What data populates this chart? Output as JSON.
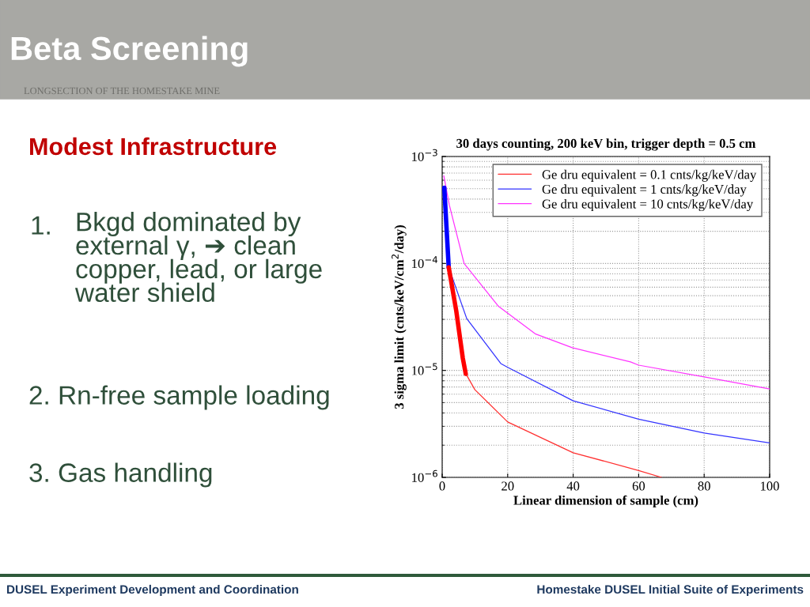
{
  "chart_data": {
    "type": "line",
    "title": "30 days counting, 200 keV bin, trigger depth = 0.5 cm",
    "xlabel": "Linear dimension of sample (cm)",
    "ylabel": "3 sigma limit (cnts/keV/cm$^{2}$/day)",
    "log": "y",
    "xlim": [
      0,
      100
    ],
    "xticks": [
      0,
      20,
      40,
      60,
      80,
      100
    ],
    "ylim": [
      1e-06,
      0.001
    ],
    "yticks": [
      {
        "value": 1e-06,
        "label": "10$^{−6}$"
      },
      {
        "value": 1e-05,
        "label": "10$^{−5}$"
      },
      {
        "value": 0.0001,
        "label": "10$^{−4}$"
      },
      {
        "value": 0.001,
        "label": "10$^{−3}$"
      }
    ],
    "grid": true,
    "legend": "top right",
    "line_style": "solid",
    "marker": "none",
    "series": [
      {
        "name": "Ge dru equivalent = 0.1 cnts/kg/keV/day",
        "color": "#ff3030",
        "x": [
          2,
          4.3,
          6.3,
          7.5,
          10,
          20,
          40,
          60,
          67
        ],
        "values": [
          9.2e-05,
          3.6e-05,
          1.3e-05,
          9e-06,
          6.6e-06,
          3.3e-06,
          1.7e-06,
          1.16e-06,
          1e-06
        ]
      },
      {
        "name": "Ge dru equivalent = 1 cnts/kg/keV/day",
        "color": "#3333ff",
        "x": [
          0.65,
          2,
          7.5,
          17.9,
          20,
          40,
          60,
          80,
          100
        ],
        "values": [
          0.00051,
          9.2e-05,
          3.05e-05,
          1.16e-05,
          1.07e-05,
          5.2e-06,
          3.5e-06,
          2.6e-06,
          2.1e-06
        ]
      },
      {
        "name": "Ge dru equivalent = 10 cnts/kg/keV/day",
        "color": "#ff33ff",
        "x": [
          0.5,
          2.2,
          6.7,
          17.1,
          28.4,
          39.7,
          57.5,
          60,
          80,
          100
        ],
        "values": [
          0.00066,
          0.00035,
          0.0001,
          4e-05,
          2.2e-05,
          1.63e-05,
          1.2e-05,
          1.12e-05,
          8.7e-06,
          6.7e-06
        ]
      },
      {
        "color": "#0000ff",
        "x": [
          0.65,
          2
        ],
        "values": [
          0.00051,
          9.2e-05
        ]
      },
      {
        "color": "#ff0000",
        "x": [
          2,
          4.3,
          6.3,
          7.2
        ],
        "values": [
          9.2e-05,
          3.6e-05,
          1.3e-05,
          9.3e-06
        ]
      }
    ],
    "annotations": [
      "Beta Screening",
      "LONGSECTION OF THE HOMESTAKE MINE",
      "Modest Infrastructure",
      "1.",
      "Bkgd dominated by\nexternal γ, ➔ clean\ncopper, lead, or large\nwater shield",
      "2. Rn-free sample loading",
      "3. Gas handling",
      "DUSEL Experiment Development and Coordination",
      "Homestake DUSEL Initial Suite of Experiments"
    ]
  }
}
